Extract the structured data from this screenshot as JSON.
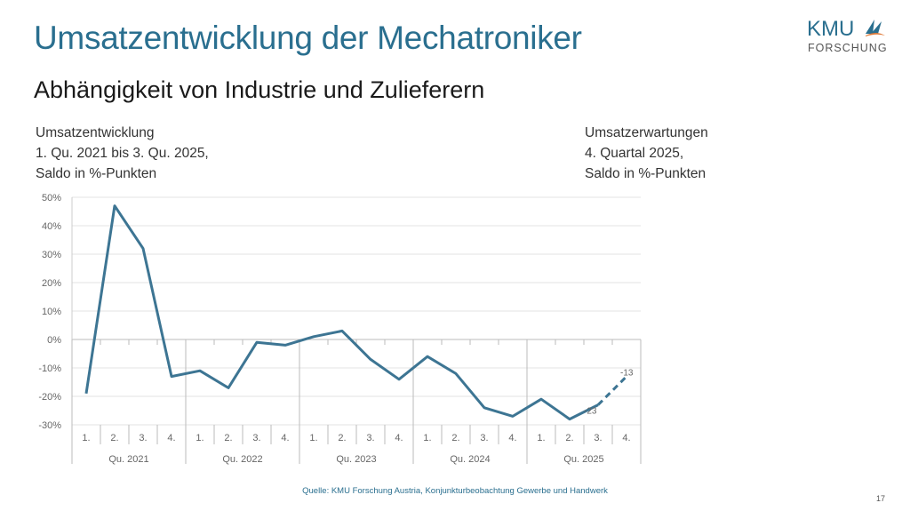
{
  "header": {
    "title": "Umsatzentwicklung der Mechatroniker",
    "subtitle": "Abhängigkeit von Industrie und Zulieferern"
  },
  "logo": {
    "text_top": "KMU",
    "text_bottom": "FORSCHUNG",
    "colors": [
      "#2a6f8f",
      "#e07b39"
    ]
  },
  "left_note": [
    "Umsatzentwicklung",
    "1. Qu. 2021 bis 3. Qu. 2025,",
    "Saldo in %-Punkten"
  ],
  "right_note": [
    "Umsatzerwartungen",
    "4. Quartal 2025,",
    "Saldo in %-Punkten"
  ],
  "source": "Quelle: KMU Forschung Austria, Konjunkturbeobachtung Gewerbe und Handwerk",
  "page_number": "17",
  "chart_data": {
    "type": "line",
    "ylim": [
      -30,
      50
    ],
    "yticks": [
      "50%",
      "40%",
      "30%",
      "20%",
      "10%",
      "0%",
      "-10%",
      "-20%",
      "-30%"
    ],
    "ytick_values": [
      50,
      40,
      30,
      20,
      10,
      0,
      -10,
      -20,
      -30
    ],
    "grid": true,
    "categories": [
      "1.",
      "2.",
      "3.",
      "4.",
      "1.",
      "2.",
      "3.",
      "4.",
      "1.",
      "2.",
      "3.",
      "4.",
      "1.",
      "2.",
      "3.",
      "4.",
      "1.",
      "2.",
      "3.",
      "4."
    ],
    "groups": [
      "Qu. 2021",
      "Qu. 2022",
      "Qu. 2023",
      "Qu. 2024",
      "Qu. 2025"
    ],
    "series": [
      {
        "values": [
          -19,
          47,
          32,
          -13,
          -11,
          -17,
          -1,
          -2,
          1,
          3,
          -7,
          -14,
          -6,
          -12,
          -24,
          -27,
          -21,
          -28,
          -23,
          null
        ],
        "color": "#3d7593",
        "style": "solid"
      },
      {
        "values": [
          null,
          null,
          null,
          null,
          null,
          null,
          null,
          null,
          null,
          null,
          null,
          null,
          null,
          null,
          null,
          null,
          null,
          null,
          -23,
          -13
        ],
        "color": "#3d7593",
        "style": "dashed"
      }
    ],
    "data_labels": [
      {
        "category_index": 18,
        "text": "-23"
      },
      {
        "category_index": 19,
        "text": "-13"
      }
    ]
  }
}
